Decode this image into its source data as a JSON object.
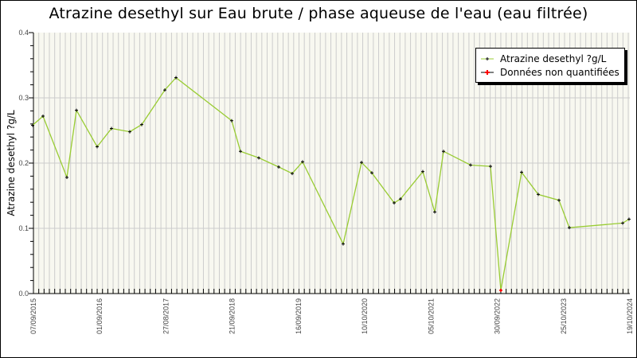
{
  "chart_data": {
    "type": "line",
    "title": "Atrazine desethyl sur Eau brute / phase aqueuse de l'eau (eau filtrée)",
    "xlabel": "",
    "ylabel": "Atrazine desethyl ?g/L",
    "ylim": [
      0.0,
      0.4
    ],
    "yticks": [
      "0.0",
      "0.1",
      "0.2",
      "0.3",
      "0.4"
    ],
    "xtick_labels": [
      "07/09/2015",
      "01/09/2016",
      "27/08/2017",
      "21/09/2018",
      "16/09/2019",
      "10/10/2020",
      "05/10/2021",
      "30/09/2022",
      "25/10/2023",
      "19/10/2024"
    ],
    "grid": {
      "horizontal": true,
      "vertical": true
    },
    "legend_position": "top-right",
    "legend": [
      {
        "label": "Atrazine desethyl ?g/L",
        "color": "#99cc33",
        "marker_color": "#000000"
      },
      {
        "label": "Données non quantifiées",
        "color": "#ff0000"
      }
    ],
    "series": [
      {
        "name": "Atrazine desethyl ?g/L",
        "color": "#99cc33",
        "points": [
          {
            "px": 41,
            "y": 0.258
          },
          {
            "px": 54,
            "y": 0.272
          },
          {
            "px": 84,
            "y": 0.178
          },
          {
            "px": 96,
            "y": 0.281
          },
          {
            "px": 122,
            "y": 0.225
          },
          {
            "px": 140,
            "y": 0.253
          },
          {
            "px": 163,
            "y": 0.248
          },
          {
            "px": 178,
            "y": 0.259
          },
          {
            "px": 207,
            "y": 0.312
          },
          {
            "px": 221,
            "y": 0.331
          },
          {
            "px": 291,
            "y": 0.265
          },
          {
            "px": 302,
            "y": 0.218
          },
          {
            "px": 325,
            "y": 0.208
          },
          {
            "px": 350,
            "y": 0.194
          },
          {
            "px": 367,
            "y": 0.184
          },
          {
            "px": 380,
            "y": 0.202
          },
          {
            "px": 431,
            "y": 0.076
          },
          {
            "px": 454,
            "y": 0.201
          },
          {
            "px": 467,
            "y": 0.185
          },
          {
            "px": 495,
            "y": 0.139
          },
          {
            "px": 503,
            "y": 0.145
          },
          {
            "px": 531,
            "y": 0.187
          },
          {
            "px": 546,
            "y": 0.125
          },
          {
            "px": 557,
            "y": 0.218
          },
          {
            "px": 591,
            "y": 0.197
          },
          {
            "px": 616,
            "y": 0.195
          },
          {
            "px": 629,
            "y": 0.005,
            "non_quantified": true
          },
          {
            "px": 655,
            "y": 0.186
          },
          {
            "px": 676,
            "y": 0.152
          },
          {
            "px": 702,
            "y": 0.143
          },
          {
            "px": 715,
            "y": 0.101
          },
          {
            "px": 782,
            "y": 0.108
          },
          {
            "px": 790,
            "y": 0.114
          }
        ]
      }
    ]
  }
}
